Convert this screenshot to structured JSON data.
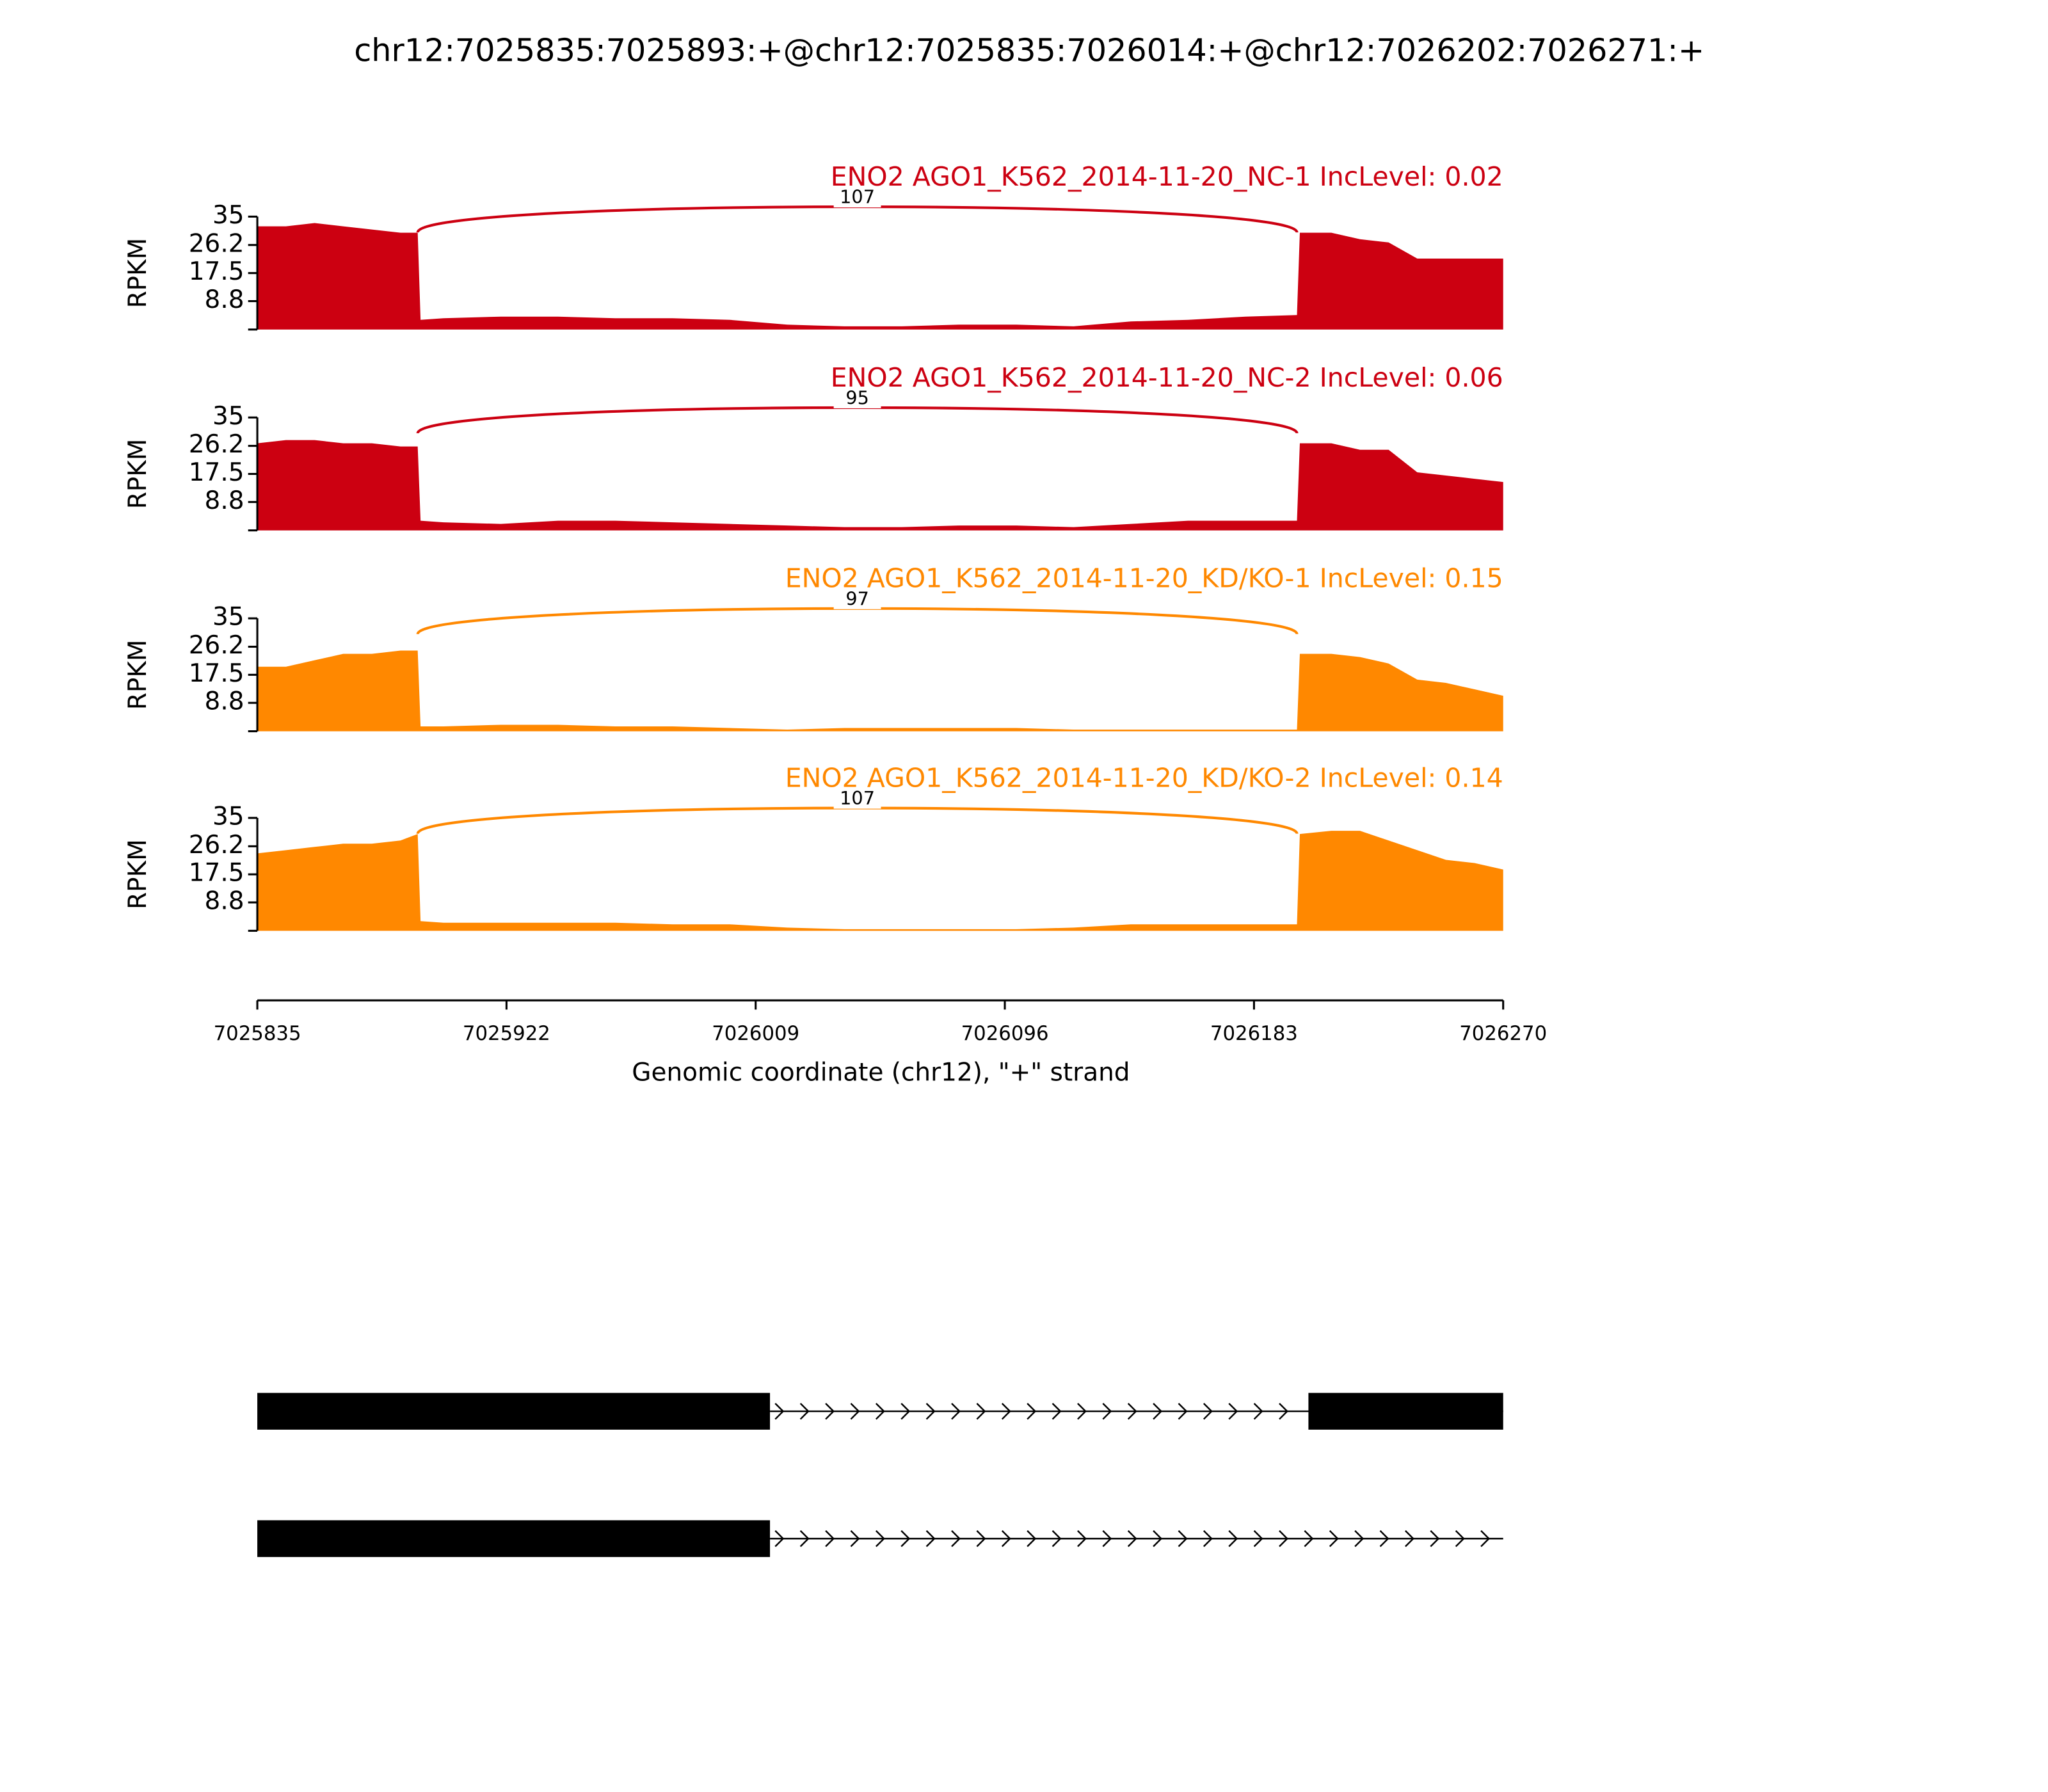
{
  "title": "chr12:7025835:7025893:+@chr12:7025835:7026014:+@chr12:7026202:7026271:+",
  "x_axis": {
    "label": "Genomic coordinate (chr12), \"+\" strand",
    "xlim": [
      7025835,
      7026270
    ],
    "xticks": [
      7025835,
      7025922,
      7026009,
      7026096,
      7026183,
      7026270
    ]
  },
  "chart_data": [
    {
      "type": "area",
      "title": "ENO2 AGO1_K562_2014-11-20_NC-1 IncLevel: 0.02",
      "ylabel": "RPKM",
      "color": "#cc0011",
      "ylim": [
        0,
        35
      ],
      "yticks": [
        35,
        26.2,
        17.5,
        8.8
      ],
      "x": [
        7025835,
        7025845,
        7025855,
        7025865,
        7025875,
        7025885,
        7025891,
        7025892,
        7025900,
        7025920,
        7025940,
        7025960,
        7025980,
        7026000,
        7026020,
        7026040,
        7026060,
        7026080,
        7026100,
        7026120,
        7026140,
        7026160,
        7026180,
        7026198,
        7026199,
        7026210,
        7026220,
        7026230,
        7026240,
        7026250,
        7026260,
        7026270
      ],
      "values": [
        32,
        32,
        33,
        32,
        31,
        30,
        30,
        3,
        3.5,
        4,
        4,
        3.5,
        3.5,
        3,
        1.5,
        1,
        1,
        1.5,
        1.5,
        1,
        2.5,
        3,
        4,
        4.5,
        30,
        30,
        28,
        27,
        22,
        22,
        22,
        22
      ],
      "junction": {
        "from": 7025891,
        "to": 7026198,
        "count": 107
      }
    },
    {
      "type": "area",
      "title": "ENO2 AGO1_K562_2014-11-20_NC-2 IncLevel: 0.06",
      "ylabel": "RPKM",
      "color": "#cc0011",
      "ylim": [
        0,
        35
      ],
      "yticks": [
        35,
        26.2,
        17.5,
        8.8
      ],
      "x": [
        7025835,
        7025845,
        7025855,
        7025865,
        7025875,
        7025885,
        7025891,
        7025892,
        7025900,
        7025920,
        7025940,
        7025960,
        7025980,
        7026000,
        7026020,
        7026040,
        7026060,
        7026080,
        7026100,
        7026120,
        7026140,
        7026160,
        7026180,
        7026198,
        7026199,
        7026210,
        7026220,
        7026230,
        7026240,
        7026250,
        7026260,
        7026270
      ],
      "values": [
        27,
        28,
        28,
        27,
        27,
        26,
        26,
        3,
        2.5,
        2,
        3,
        3,
        2.5,
        2,
        1.5,
        1,
        1,
        1.5,
        1.5,
        1,
        2,
        3,
        3,
        3,
        27,
        27,
        25,
        25,
        18,
        17,
        16,
        15
      ],
      "junction": {
        "from": 7025891,
        "to": 7026198,
        "count": 95
      }
    },
    {
      "type": "area",
      "title": "ENO2 AGO1_K562_2014-11-20_KD/KO-1 IncLevel: 0.15",
      "ylabel": "RPKM",
      "color": "#ff8800",
      "ylim": [
        0,
        35
      ],
      "yticks": [
        35,
        26.2,
        17.5,
        8.8
      ],
      "x": [
        7025835,
        7025845,
        7025855,
        7025865,
        7025875,
        7025885,
        7025891,
        7025892,
        7025900,
        7025920,
        7025940,
        7025960,
        7025980,
        7026000,
        7026020,
        7026040,
        7026060,
        7026080,
        7026100,
        7026120,
        7026140,
        7026160,
        7026180,
        7026198,
        7026199,
        7026210,
        7026220,
        7026230,
        7026240,
        7026250,
        7026260,
        7026270
      ],
      "values": [
        20,
        20,
        22,
        24,
        24,
        25,
        25,
        1.5,
        1.5,
        2,
        2,
        1.5,
        1.5,
        1,
        0.5,
        1,
        1,
        1,
        1,
        0.5,
        0.5,
        0.5,
        0.5,
        0.5,
        24,
        24,
        23,
        21,
        16,
        15,
        13,
        11
      ],
      "junction": {
        "from": 7025891,
        "to": 7026198,
        "count": 97
      }
    },
    {
      "type": "area",
      "title": "ENO2 AGO1_K562_2014-11-20_KD/KO-2 IncLevel: 0.14",
      "ylabel": "RPKM",
      "color": "#ff8800",
      "ylim": [
        0,
        35
      ],
      "yticks": [
        35,
        26.2,
        17.5,
        8.8
      ],
      "x": [
        7025835,
        7025845,
        7025855,
        7025865,
        7025875,
        7025885,
        7025891,
        7025892,
        7025900,
        7025920,
        7025940,
        7025960,
        7025980,
        7026000,
        7026020,
        7026040,
        7026060,
        7026080,
        7026100,
        7026120,
        7026140,
        7026160,
        7026180,
        7026198,
        7026199,
        7026210,
        7026220,
        7026230,
        7026240,
        7026250,
        7026260,
        7026270
      ],
      "values": [
        24,
        25,
        26,
        27,
        27,
        28,
        30,
        3,
        2.5,
        2.5,
        2.5,
        2.5,
        2,
        2,
        1,
        0.5,
        0.5,
        0.5,
        0.5,
        1,
        2,
        2,
        2,
        2,
        30,
        31,
        31,
        28,
        25,
        22,
        21,
        19
      ],
      "junction": {
        "from": 7025891,
        "to": 7026198,
        "count": 107
      }
    }
  ],
  "transcripts": [
    {
      "exons": [
        [
          7025835,
          7026014
        ],
        [
          7026202,
          7026270
        ]
      ]
    },
    {
      "exons": [
        [
          7025835,
          7026014
        ]
      ]
    }
  ]
}
